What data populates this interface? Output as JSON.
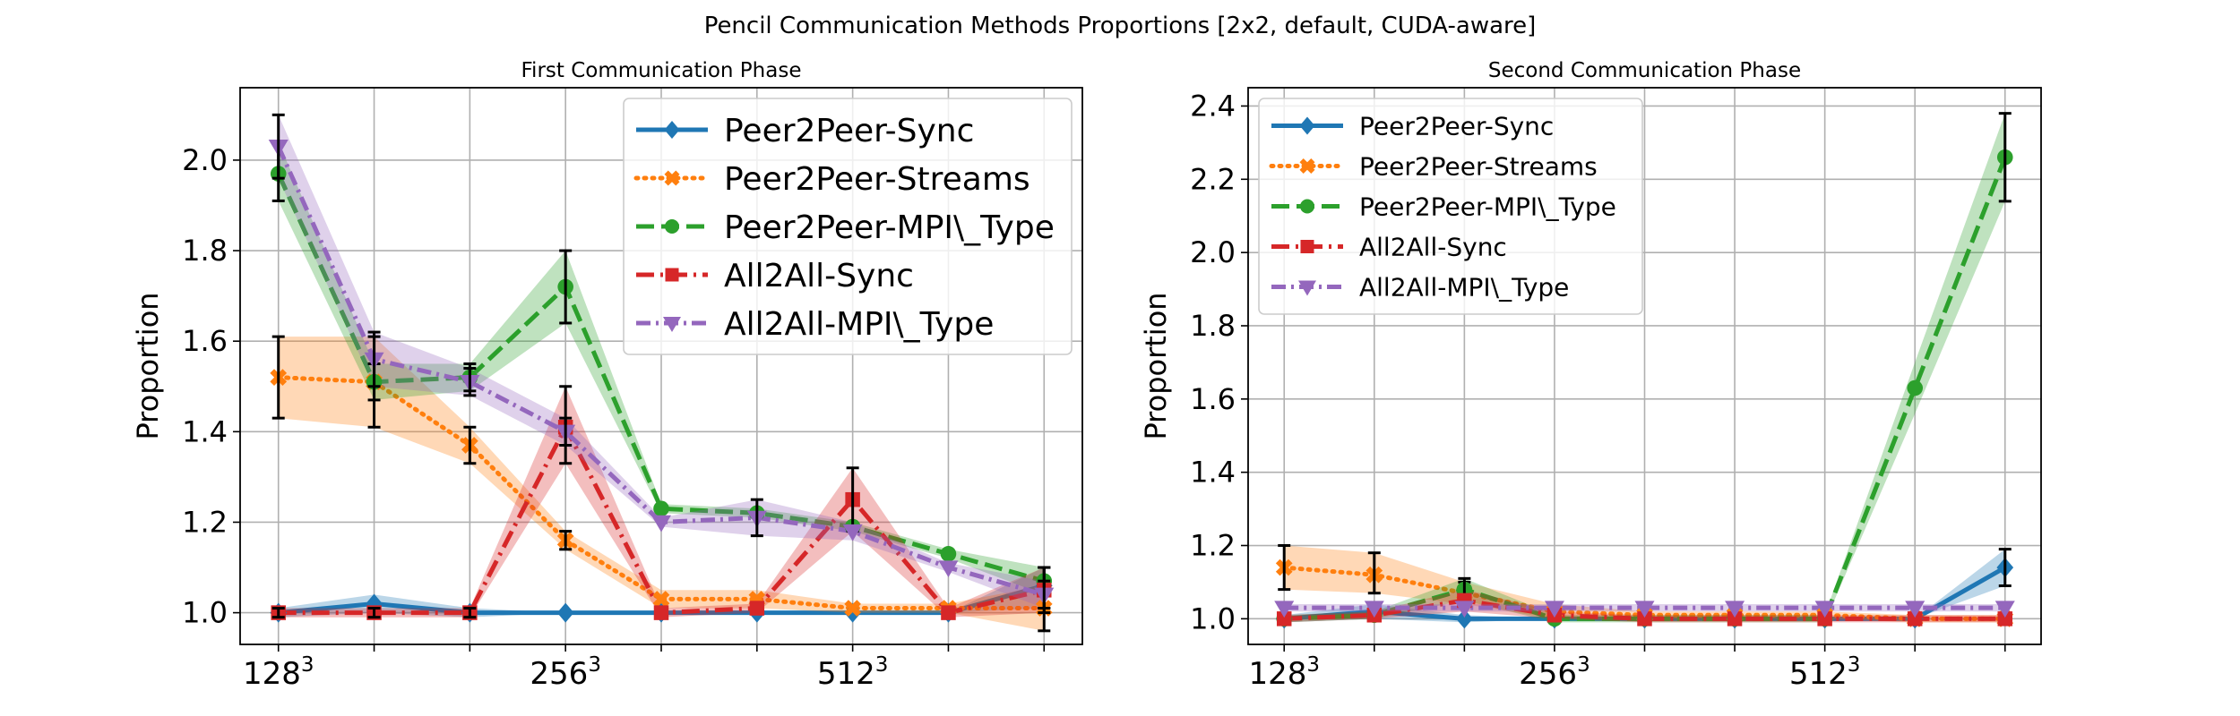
{
  "figure": {
    "suptitle": "Pencil Communication Methods Proportions [2x2, default, CUDA-aware]"
  },
  "colors": {
    "Peer2Peer-Sync": "#1f77b4",
    "Peer2Peer-Streams": "#ff7f0e",
    "Peer2Peer-MPI\\_Type": "#2ca02c",
    "All2All-Sync": "#d62728",
    "All2All-MPI\\_Type": "#9467bd"
  },
  "chart_data": [
    {
      "type": "line",
      "title": "First Communication Phase",
      "xlabel": "",
      "ylabel": "Proportion",
      "x": [
        0,
        1,
        2,
        3,
        4,
        5,
        6,
        7,
        8
      ],
      "xticks": [
        {
          "x": 0,
          "label": "128",
          "sup": "3"
        },
        {
          "x": 1,
          "label": "",
          "sup": ""
        },
        {
          "x": 2,
          "label": "",
          "sup": ""
        },
        {
          "x": 3,
          "label": "256",
          "sup": "3"
        },
        {
          "x": 4,
          "label": "",
          "sup": ""
        },
        {
          "x": 5,
          "label": "",
          "sup": ""
        },
        {
          "x": 6,
          "label": "512",
          "sup": "3"
        },
        {
          "x": 7,
          "label": "",
          "sup": ""
        },
        {
          "x": 8,
          "label": "",
          "sup": ""
        }
      ],
      "xlim": [
        -0.4,
        8.4
      ],
      "ylim": [
        0.93,
        2.16
      ],
      "yticks": [
        1.0,
        1.2,
        1.4,
        1.6,
        1.8,
        2.0
      ],
      "grid": true,
      "legend_position": "upper right",
      "series": [
        {
          "name": "Peer2Peer-Sync",
          "values": [
            1.0,
            1.02,
            1.0,
            1.0,
            1.0,
            1.0,
            1.0,
            1.0,
            1.06
          ],
          "low": [
            0.99,
            1.0,
            0.99,
            1.0,
            1.0,
            1.0,
            1.0,
            1.0,
            1.01
          ],
          "high": [
            1.01,
            1.04,
            1.01,
            1.0,
            1.0,
            1.0,
            1.0,
            1.0,
            1.1
          ],
          "errorbar_indices": [
            0,
            2,
            8
          ]
        },
        {
          "name": "Peer2Peer-Streams",
          "values": [
            1.52,
            1.51,
            1.37,
            1.16,
            1.03,
            1.03,
            1.01,
            1.01,
            1.01
          ],
          "low": [
            1.43,
            1.41,
            1.33,
            1.14,
            1.01,
            1.01,
            1.0,
            1.0,
            0.96
          ],
          "high": [
            1.61,
            1.61,
            1.41,
            1.18,
            1.05,
            1.05,
            1.02,
            1.02,
            1.06
          ],
          "errorbar_indices": [
            0,
            1,
            2,
            3,
            8
          ]
        },
        {
          "name": "Peer2Peer-MPI\\_Type",
          "values": [
            1.97,
            1.51,
            1.52,
            1.72,
            1.23,
            1.22,
            1.19,
            1.13,
            1.07
          ],
          "low": [
            1.91,
            1.47,
            1.49,
            1.64,
            1.22,
            1.21,
            1.18,
            1.12,
            1.04
          ],
          "high": [
            2.04,
            1.55,
            1.55,
            1.8,
            1.24,
            1.23,
            1.2,
            1.14,
            1.1
          ],
          "errorbar_indices": [
            0,
            1,
            2,
            3,
            8
          ]
        },
        {
          "name": "All2All-Sync",
          "values": [
            1.0,
            1.0,
            1.0,
            1.41,
            1.0,
            1.01,
            1.25,
            1.0,
            1.05
          ],
          "low": [
            0.99,
            0.99,
            0.99,
            1.33,
            0.99,
            1.0,
            1.18,
            0.99,
            1.0
          ],
          "high": [
            1.01,
            1.01,
            1.01,
            1.5,
            1.01,
            1.02,
            1.32,
            1.01,
            1.1
          ],
          "errorbar_indices": [
            0,
            1,
            2,
            3,
            6,
            8
          ]
        },
        {
          "name": "All2All-MPI\\_Type",
          "values": [
            2.03,
            1.56,
            1.51,
            1.4,
            1.2,
            1.21,
            1.18,
            1.1,
            1.04
          ],
          "low": [
            1.96,
            1.5,
            1.48,
            1.37,
            1.19,
            1.17,
            1.16,
            1.09,
            1.01
          ],
          "high": [
            2.1,
            1.62,
            1.54,
            1.43,
            1.21,
            1.25,
            1.2,
            1.11,
            1.07
          ],
          "errorbar_indices": [
            0,
            1,
            2,
            3,
            5,
            8
          ]
        }
      ]
    },
    {
      "type": "line",
      "title": "Second Communication Phase",
      "xlabel": "",
      "ylabel": "Proportion",
      "x": [
        0,
        1,
        2,
        3,
        4,
        5,
        6,
        7,
        8
      ],
      "xticks": [
        {
          "x": 0,
          "label": "128",
          "sup": "3"
        },
        {
          "x": 1,
          "label": "",
          "sup": ""
        },
        {
          "x": 2,
          "label": "",
          "sup": ""
        },
        {
          "x": 3,
          "label": "256",
          "sup": "3"
        },
        {
          "x": 4,
          "label": "",
          "sup": ""
        },
        {
          "x": 5,
          "label": "",
          "sup": ""
        },
        {
          "x": 6,
          "label": "512",
          "sup": "3"
        },
        {
          "x": 7,
          "label": "",
          "sup": ""
        },
        {
          "x": 8,
          "label": "",
          "sup": ""
        }
      ],
      "xlim": [
        -0.4,
        8.4
      ],
      "ylim": [
        0.93,
        2.45
      ],
      "yticks": [
        1.0,
        1.2,
        1.4,
        1.6,
        1.8,
        2.0,
        2.2,
        2.4
      ],
      "grid": true,
      "legend_position": "upper left",
      "series": [
        {
          "name": "Peer2Peer-Sync",
          "values": [
            1.0,
            1.02,
            1.0,
            1.0,
            1.0,
            1.0,
            1.0,
            1.0,
            1.14
          ],
          "low": [
            0.99,
            1.0,
            0.99,
            1.0,
            1.0,
            1.0,
            1.0,
            1.0,
            1.09
          ],
          "high": [
            1.01,
            1.04,
            1.01,
            1.0,
            1.0,
            1.0,
            1.0,
            1.0,
            1.19
          ],
          "errorbar_indices": [
            8
          ]
        },
        {
          "name": "Peer2Peer-Streams",
          "values": [
            1.14,
            1.12,
            1.07,
            1.02,
            1.01,
            1.01,
            1.01,
            1.0,
            1.0
          ],
          "low": [
            1.08,
            1.07,
            1.04,
            1.0,
            1.0,
            1.0,
            1.0,
            0.99,
            0.99
          ],
          "high": [
            1.2,
            1.18,
            1.1,
            1.04,
            1.02,
            1.02,
            1.02,
            1.01,
            1.01
          ],
          "errorbar_indices": [
            0,
            1,
            2
          ]
        },
        {
          "name": "Peer2Peer-MPI\\_Type",
          "values": [
            1.0,
            1.01,
            1.08,
            1.0,
            1.0,
            1.0,
            1.0,
            1.63,
            2.26
          ],
          "low": [
            0.99,
            1.0,
            1.05,
            0.99,
            0.99,
            0.99,
            0.99,
            1.56,
            2.14
          ],
          "high": [
            1.01,
            1.02,
            1.11,
            1.01,
            1.01,
            1.01,
            1.01,
            1.7,
            2.38
          ],
          "errorbar_indices": [
            2,
            8
          ]
        },
        {
          "name": "All2All-Sync",
          "values": [
            1.0,
            1.01,
            1.05,
            1.01,
            1.0,
            1.0,
            1.0,
            1.0,
            1.0
          ],
          "low": [
            0.99,
            1.0,
            1.02,
            1.0,
            0.99,
            0.99,
            0.99,
            0.99,
            0.99
          ],
          "high": [
            1.01,
            1.02,
            1.08,
            1.02,
            1.01,
            1.01,
            1.01,
            1.01,
            1.01
          ],
          "errorbar_indices": []
        },
        {
          "name": "All2All-MPI\\_Type",
          "values": [
            1.03,
            1.03,
            1.03,
            1.03,
            1.03,
            1.03,
            1.03,
            1.03,
            1.03
          ],
          "low": [
            1.02,
            1.02,
            1.02,
            1.02,
            1.02,
            1.02,
            1.02,
            1.02,
            1.02
          ],
          "high": [
            1.04,
            1.04,
            1.04,
            1.04,
            1.04,
            1.04,
            1.04,
            1.04,
            1.04
          ],
          "errorbar_indices": []
        }
      ]
    }
  ]
}
